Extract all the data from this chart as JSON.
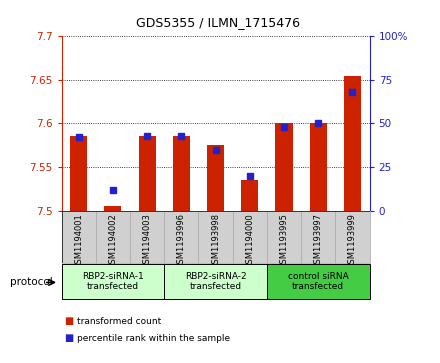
{
  "title": "GDS5355 / ILMN_1715476",
  "samples": [
    "GSM1194001",
    "GSM1194002",
    "GSM1194003",
    "GSM1193996",
    "GSM1193998",
    "GSM1194000",
    "GSM1193995",
    "GSM1193997",
    "GSM1193999"
  ],
  "red_values": [
    7.585,
    7.505,
    7.585,
    7.585,
    7.575,
    7.535,
    7.6,
    7.6,
    7.655
  ],
  "blue_values_pct": [
    42,
    12,
    43,
    43,
    35,
    20,
    48,
    50,
    68
  ],
  "ylim": [
    7.5,
    7.7
  ],
  "yticks_left": [
    7.5,
    7.55,
    7.6,
    7.65,
    7.7
  ],
  "yticks_right": [
    0,
    25,
    50,
    75,
    100
  ],
  "red_color": "#cc2200",
  "blue_color": "#2222cc",
  "bar_width": 0.5,
  "blue_marker_size": 4,
  "groups": [
    {
      "label": "RBP2-siRNA-1\ntransfected",
      "start": 0,
      "end": 3,
      "color": "#ccffcc"
    },
    {
      "label": "RBP2-siRNA-2\ntransfected",
      "start": 3,
      "end": 6,
      "color": "#ccffcc"
    },
    {
      "label": "control siRNA\ntransfected",
      "start": 6,
      "end": 9,
      "color": "#44cc44"
    }
  ],
  "protocol_label": "protocol",
  "legend_red": "transformed count",
  "legend_blue": "percentile rank within the sample",
  "tick_bg_color": "#d0d0d0",
  "plot_bg_color": "#ffffff"
}
